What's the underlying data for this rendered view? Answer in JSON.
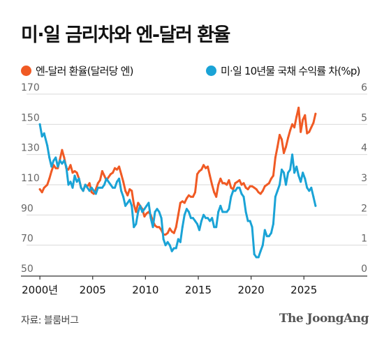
{
  "title": "미·일 금리차와 엔-달러 환율",
  "source": "자료: 블룸버그",
  "brand": "The JoongAng",
  "chart_data": {
    "type": "line",
    "x_tick_labels": [
      "2000년",
      "2005",
      "2010",
      "2015",
      "2020",
      "2025"
    ],
    "x_ticks": [
      2000,
      2005,
      2010,
      2015,
      2020,
      2025
    ],
    "xlim": [
      1999,
      2031
    ],
    "left_axis": {
      "ticks": [
        50,
        70,
        90,
        110,
        130,
        150,
        170
      ],
      "ylim": [
        50,
        170
      ]
    },
    "right_axis": {
      "ticks": [
        0,
        1,
        2,
        3,
        4,
        5,
        6
      ],
      "ylim": [
        0,
        6
      ]
    },
    "grid": true,
    "legend_position": "top",
    "series": [
      {
        "name": "엔-달러 환율(달러당 엔)",
        "axis": "left",
        "color": "#f05a24",
        "points": [
          [
            2000.0,
            107
          ],
          [
            2000.2,
            105
          ],
          [
            2000.4,
            108
          ],
          [
            2000.7,
            110
          ],
          [
            2000.9,
            114
          ],
          [
            2001.1,
            119
          ],
          [
            2001.3,
            123
          ],
          [
            2001.5,
            121
          ],
          [
            2001.7,
            121
          ],
          [
            2001.9,
            127
          ],
          [
            2002.1,
            133
          ],
          [
            2002.3,
            128
          ],
          [
            2002.5,
            121
          ],
          [
            2002.7,
            120
          ],
          [
            2002.9,
            123
          ],
          [
            2003.1,
            118
          ],
          [
            2003.3,
            119
          ],
          [
            2003.5,
            118
          ],
          [
            2003.7,
            114
          ],
          [
            2003.9,
            108
          ],
          [
            2004.1,
            106
          ],
          [
            2004.3,
            110
          ],
          [
            2004.5,
            109
          ],
          [
            2004.7,
            111
          ],
          [
            2004.9,
            105
          ],
          [
            2005.1,
            104
          ],
          [
            2005.3,
            107
          ],
          [
            2005.5,
            111
          ],
          [
            2005.7,
            113
          ],
          [
            2005.9,
            119
          ],
          [
            2006.1,
            116
          ],
          [
            2006.3,
            113
          ],
          [
            2006.5,
            115
          ],
          [
            2006.7,
            117
          ],
          [
            2006.9,
            118
          ],
          [
            2007.1,
            121
          ],
          [
            2007.3,
            120
          ],
          [
            2007.5,
            122
          ],
          [
            2007.7,
            117
          ],
          [
            2007.9,
            112
          ],
          [
            2008.1,
            106
          ],
          [
            2008.3,
            103
          ],
          [
            2008.5,
            107
          ],
          [
            2008.7,
            106
          ],
          [
            2008.9,
            97
          ],
          [
            2009.1,
            92
          ],
          [
            2009.3,
            98
          ],
          [
            2009.5,
            96
          ],
          [
            2009.7,
            94
          ],
          [
            2009.9,
            89
          ],
          [
            2010.1,
            91
          ],
          [
            2010.3,
            92
          ],
          [
            2010.5,
            90
          ],
          [
            2010.7,
            86
          ],
          [
            2010.9,
            83
          ],
          [
            2011.1,
            82
          ],
          [
            2011.3,
            82
          ],
          [
            2011.5,
            80
          ],
          [
            2011.7,
            77
          ],
          [
            2011.9,
            77
          ],
          [
            2012.1,
            78
          ],
          [
            2012.3,
            81
          ],
          [
            2012.5,
            79
          ],
          [
            2012.7,
            78
          ],
          [
            2012.9,
            82
          ],
          [
            2013.1,
            90
          ],
          [
            2013.3,
            98
          ],
          [
            2013.5,
            99
          ],
          [
            2013.7,
            98
          ],
          [
            2013.9,
            101
          ],
          [
            2014.1,
            103
          ],
          [
            2014.3,
            102
          ],
          [
            2014.5,
            102
          ],
          [
            2014.7,
            105
          ],
          [
            2014.9,
            117
          ],
          [
            2015.1,
            119
          ],
          [
            2015.3,
            120
          ],
          [
            2015.5,
            123
          ],
          [
            2015.7,
            121
          ],
          [
            2015.9,
            122
          ],
          [
            2016.1,
            116
          ],
          [
            2016.3,
            110
          ],
          [
            2016.5,
            105
          ],
          [
            2016.7,
            102
          ],
          [
            2016.9,
            110
          ],
          [
            2017.1,
            114
          ],
          [
            2017.3,
            111
          ],
          [
            2017.5,
            111
          ],
          [
            2017.7,
            110
          ],
          [
            2017.9,
            113
          ],
          [
            2018.1,
            108
          ],
          [
            2018.3,
            107
          ],
          [
            2018.5,
            111
          ],
          [
            2018.7,
            112
          ],
          [
            2018.9,
            113
          ],
          [
            2019.1,
            110
          ],
          [
            2019.3,
            111
          ],
          [
            2019.5,
            108
          ],
          [
            2019.7,
            107
          ],
          [
            2019.9,
            109
          ],
          [
            2020.1,
            109
          ],
          [
            2020.3,
            108
          ],
          [
            2020.5,
            107
          ],
          [
            2020.7,
            105
          ],
          [
            2020.9,
            104
          ],
          [
            2021.1,
            106
          ],
          [
            2021.3,
            109
          ],
          [
            2021.5,
            110
          ],
          [
            2021.7,
            111
          ],
          [
            2021.9,
            114
          ],
          [
            2022.1,
            116
          ],
          [
            2022.3,
            128
          ],
          [
            2022.5,
            135
          ],
          [
            2022.7,
            143
          ],
          [
            2022.9,
            140
          ],
          [
            2023.1,
            131
          ],
          [
            2023.3,
            135
          ],
          [
            2023.5,
            141
          ],
          [
            2023.7,
            146
          ],
          [
            2023.9,
            150
          ],
          [
            2024.1,
            148
          ],
          [
            2024.3,
            155
          ],
          [
            2024.5,
            161
          ],
          [
            2024.7,
            145
          ],
          [
            2024.9,
            153
          ],
          [
            2025.1,
            156
          ],
          [
            2025.3,
            144
          ],
          [
            2025.5,
            145
          ],
          [
            2025.7,
            148
          ],
          [
            2025.9,
            151
          ],
          [
            2026.1,
            157
          ]
        ]
      },
      {
        "name": "미·일 10년물 국채 수익률 차(%p)",
        "axis": "right",
        "color": "#1aa3d6",
        "points": [
          [
            2000.0,
            5.0
          ],
          [
            2000.2,
            4.6
          ],
          [
            2000.4,
            4.7
          ],
          [
            2000.7,
            4.3
          ],
          [
            2000.9,
            3.9
          ],
          [
            2001.1,
            3.6
          ],
          [
            2001.3,
            3.8
          ],
          [
            2001.5,
            3.9
          ],
          [
            2001.7,
            3.6
          ],
          [
            2001.9,
            3.8
          ],
          [
            2002.1,
            3.7
          ],
          [
            2002.3,
            3.8
          ],
          [
            2002.5,
            3.6
          ],
          [
            2002.7,
            3.0
          ],
          [
            2002.9,
            3.1
          ],
          [
            2003.1,
            2.9
          ],
          [
            2003.3,
            3.3
          ],
          [
            2003.5,
            3.1
          ],
          [
            2003.7,
            3.2
          ],
          [
            2003.9,
            2.9
          ],
          [
            2004.1,
            2.8
          ],
          [
            2004.3,
            3.0
          ],
          [
            2004.5,
            2.9
          ],
          [
            2004.7,
            2.8
          ],
          [
            2004.9,
            2.9
          ],
          [
            2005.1,
            2.8
          ],
          [
            2005.3,
            2.7
          ],
          [
            2005.5,
            2.9
          ],
          [
            2005.7,
            2.9
          ],
          [
            2005.9,
            2.9
          ],
          [
            2006.1,
            3.0
          ],
          [
            2006.3,
            3.2
          ],
          [
            2006.5,
            3.1
          ],
          [
            2006.7,
            3.0
          ],
          [
            2006.9,
            2.9
          ],
          [
            2007.1,
            2.9
          ],
          [
            2007.3,
            3.1
          ],
          [
            2007.5,
            3.2
          ],
          [
            2007.7,
            2.8
          ],
          [
            2007.9,
            2.6
          ],
          [
            2008.1,
            2.3
          ],
          [
            2008.3,
            2.4
          ],
          [
            2008.5,
            2.5
          ],
          [
            2008.7,
            2.3
          ],
          [
            2008.9,
            1.6
          ],
          [
            2009.1,
            1.7
          ],
          [
            2009.3,
            2.1
          ],
          [
            2009.5,
            2.3
          ],
          [
            2009.7,
            2.1
          ],
          [
            2009.9,
            2.2
          ],
          [
            2010.1,
            2.3
          ],
          [
            2010.3,
            2.4
          ],
          [
            2010.5,
            1.9
          ],
          [
            2010.7,
            1.6
          ],
          [
            2010.9,
            2.1
          ],
          [
            2011.1,
            2.2
          ],
          [
            2011.3,
            2.1
          ],
          [
            2011.5,
            1.9
          ],
          [
            2011.7,
            1.2
          ],
          [
            2011.9,
            1.0
          ],
          [
            2012.1,
            1.1
          ],
          [
            2012.3,
            1.0
          ],
          [
            2012.5,
            0.8
          ],
          [
            2012.7,
            0.9
          ],
          [
            2012.9,
            0.9
          ],
          [
            2013.1,
            1.2
          ],
          [
            2013.3,
            1.1
          ],
          [
            2013.5,
            1.6
          ],
          [
            2013.7,
            2.0
          ],
          [
            2013.9,
            2.2
          ],
          [
            2014.1,
            2.1
          ],
          [
            2014.3,
            1.9
          ],
          [
            2014.5,
            1.9
          ],
          [
            2014.7,
            1.8
          ],
          [
            2014.9,
            1.7
          ],
          [
            2015.1,
            1.5
          ],
          [
            2015.3,
            1.8
          ],
          [
            2015.5,
            2.0
          ],
          [
            2015.7,
            1.9
          ],
          [
            2015.9,
            1.9
          ],
          [
            2016.1,
            1.8
          ],
          [
            2016.3,
            1.9
          ],
          [
            2016.5,
            1.6
          ],
          [
            2016.7,
            1.6
          ],
          [
            2016.9,
            2.1
          ],
          [
            2017.1,
            2.3
          ],
          [
            2017.3,
            2.1
          ],
          [
            2017.5,
            2.1
          ],
          [
            2017.7,
            2.1
          ],
          [
            2017.9,
            2.2
          ],
          [
            2018.1,
            2.6
          ],
          [
            2018.3,
            2.8
          ],
          [
            2018.5,
            2.8
          ],
          [
            2018.7,
            2.9
          ],
          [
            2018.9,
            2.9
          ],
          [
            2019.1,
            2.7
          ],
          [
            2019.3,
            2.6
          ],
          [
            2019.5,
            2.1
          ],
          [
            2019.7,
            1.8
          ],
          [
            2019.9,
            1.8
          ],
          [
            2020.1,
            1.6
          ],
          [
            2020.3,
            0.7
          ],
          [
            2020.5,
            0.6
          ],
          [
            2020.7,
            0.6
          ],
          [
            2020.9,
            0.8
          ],
          [
            2021.1,
            1.0
          ],
          [
            2021.3,
            1.5
          ],
          [
            2021.5,
            1.3
          ],
          [
            2021.7,
            1.3
          ],
          [
            2021.9,
            1.4
          ],
          [
            2022.1,
            1.7
          ],
          [
            2022.3,
            2.6
          ],
          [
            2022.5,
            2.8
          ],
          [
            2022.7,
            3.0
          ],
          [
            2022.9,
            3.5
          ],
          [
            2023.1,
            3.4
          ],
          [
            2023.3,
            3.0
          ],
          [
            2023.5,
            3.4
          ],
          [
            2023.7,
            3.5
          ],
          [
            2023.9,
            4.0
          ],
          [
            2024.1,
            3.4
          ],
          [
            2024.3,
            3.6
          ],
          [
            2024.5,
            3.3
          ],
          [
            2024.7,
            3.1
          ],
          [
            2024.9,
            3.4
          ],
          [
            2025.1,
            3.2
          ],
          [
            2025.3,
            2.9
          ],
          [
            2025.5,
            2.8
          ],
          [
            2025.7,
            2.9
          ],
          [
            2025.9,
            2.6
          ],
          [
            2026.1,
            2.3
          ]
        ]
      }
    ]
  }
}
